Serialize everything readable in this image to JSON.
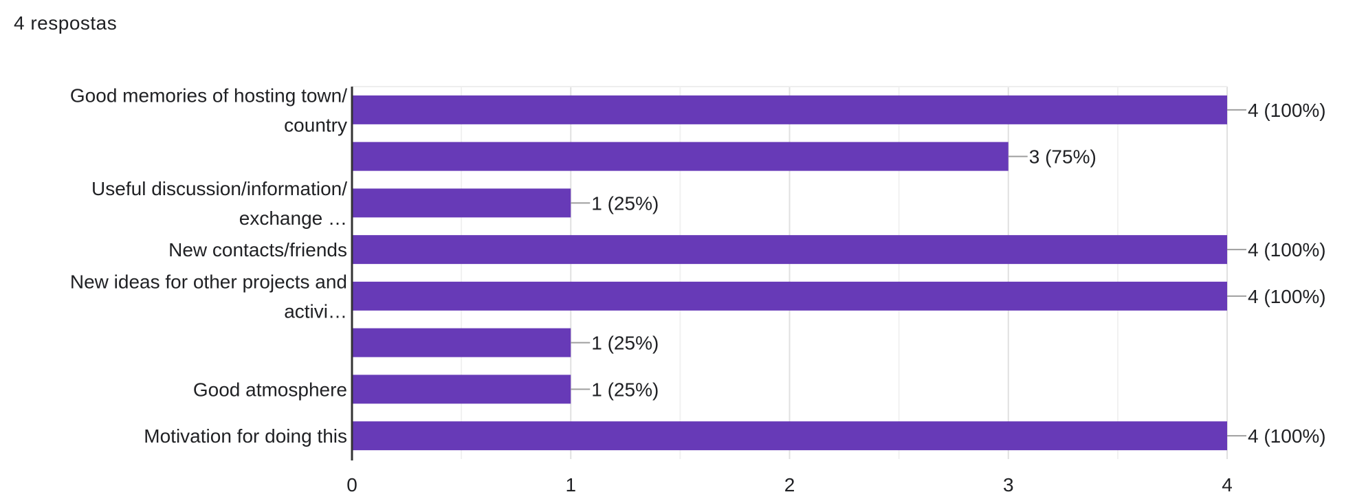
{
  "header": {
    "response_count": "4 respostas"
  },
  "chart_data": {
    "type": "bar",
    "orientation": "horizontal",
    "categories": [
      [
        "Good memories of hosting town/",
        "country"
      ],
      [],
      [
        "Useful discussion/information/",
        "exchange …"
      ],
      [
        "New contacts/friends"
      ],
      [
        "New ideas for other projects and",
        "activi…"
      ],
      [],
      [
        "Good atmosphere"
      ],
      [
        "Motivation for doing this"
      ]
    ],
    "values": [
      4,
      3,
      1,
      4,
      4,
      1,
      1,
      4
    ],
    "data_labels": [
      "4 (100%)",
      "3 (75%)",
      "1 (25%)",
      "4 (100%)",
      "4 (100%)",
      "1 (25%)",
      "1 (25%)",
      "4 (100%)"
    ],
    "x_ticks": [
      0,
      1,
      2,
      3,
      4
    ],
    "xlim": [
      0,
      4
    ],
    "grid": true,
    "bar_color": "#673ab7",
    "title": "",
    "xlabel": "",
    "ylabel": ""
  }
}
